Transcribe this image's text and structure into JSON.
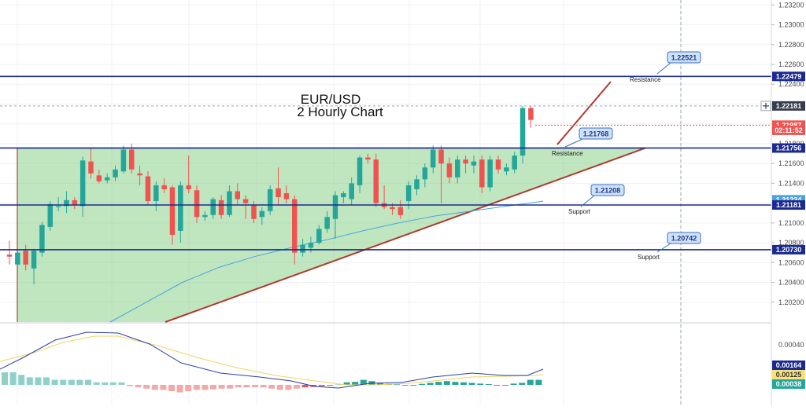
{
  "chart_data": {
    "type": "candlestick",
    "title": "EUR/USD",
    "subtitle": "2 Hourly Chart",
    "ylim": [
      1.2,
      1.2325
    ],
    "price_axis_ticks": [
      "1.23200",
      "1.23000",
      "1.22800",
      "1.22600",
      "1.22400",
      "1.22200",
      "1.22000",
      "1.21800",
      "1.21600",
      "1.21400",
      "1.21200",
      "1.21000",
      "1.20800",
      "1.20600",
      "1.20400",
      "1.20200"
    ],
    "indicator_axis_ticks": [
      "0.00040"
    ],
    "price_badges": [
      {
        "label": "1.22479",
        "value": 1.22479,
        "style": "blue"
      },
      {
        "label": "1.22181",
        "value": 1.22181,
        "style": "dark"
      },
      {
        "label": "1.21987",
        "value": 1.21987,
        "style": "red"
      },
      {
        "label": "02:11:52",
        "value": 1.21935,
        "style": "red"
      },
      {
        "label": "1.21756",
        "value": 1.21756,
        "style": "blue"
      },
      {
        "label": "1.21234",
        "value": 1.21234,
        "style": "lightblue"
      },
      {
        "label": "1.21181",
        "value": 1.21181,
        "style": "blue"
      },
      {
        "label": "1.20730",
        "value": 1.2073,
        "style": "blue"
      }
    ],
    "indicator_badges": [
      {
        "label": "0.00164",
        "style": "blue"
      },
      {
        "label": "0.00125",
        "style": "yellow"
      },
      {
        "label": "0.00038",
        "style": "teal"
      }
    ],
    "horizontal_levels": [
      {
        "value": 1.22479,
        "name": "Resistance"
      },
      {
        "value": 1.21756,
        "name": "Resistance"
      },
      {
        "value": 1.21181,
        "name": "Support"
      },
      {
        "value": 1.2073,
        "name": "Support"
      }
    ],
    "callouts": [
      "1.22521",
      "1.21768",
      "1.21208",
      "1.20742"
    ],
    "level_labels": [
      "Resistance",
      "Resistance",
      "Support",
      "Support"
    ],
    "candles": [
      {
        "o": 1.2068,
        "h": 1.2082,
        "l": 1.2058,
        "c": 1.2066
      },
      {
        "o": 1.2058,
        "h": 1.2072,
        "l": 1.205,
        "c": 1.207
      },
      {
        "o": 1.2072,
        "h": 1.2078,
        "l": 1.2052,
        "c": 1.2058
      },
      {
        "o": 1.2054,
        "h": 1.2074,
        "l": 1.2038,
        "c": 1.2072
      },
      {
        "o": 1.207,
        "h": 1.2101,
        "l": 1.2066,
        "c": 1.2098
      },
      {
        "o": 1.2096,
        "h": 1.2122,
        "l": 1.2092,
        "c": 1.2119
      },
      {
        "o": 1.2116,
        "h": 1.2126,
        "l": 1.2112,
        "c": 1.2117
      },
      {
        "o": 1.2117,
        "h": 1.2132,
        "l": 1.211,
        "c": 1.2123
      },
      {
        "o": 1.2123,
        "h": 1.2126,
        "l": 1.2114,
        "c": 1.2118
      },
      {
        "o": 1.2117,
        "h": 1.2167,
        "l": 1.2106,
        "c": 1.2163
      },
      {
        "o": 1.2162,
        "h": 1.2176,
        "l": 1.2145,
        "c": 1.215
      },
      {
        "o": 1.2148,
        "h": 1.2154,
        "l": 1.214,
        "c": 1.2142
      },
      {
        "o": 1.2143,
        "h": 1.215,
        "l": 1.214,
        "c": 1.2146
      },
      {
        "o": 1.2146,
        "h": 1.2158,
        "l": 1.2142,
        "c": 1.2154
      },
      {
        "o": 1.2152,
        "h": 1.2178,
        "l": 1.215,
        "c": 1.2174
      },
      {
        "o": 1.2174,
        "h": 1.218,
        "l": 1.215,
        "c": 1.2154
      },
      {
        "o": 1.215,
        "h": 1.2158,
        "l": 1.2138,
        "c": 1.2148
      },
      {
        "o": 1.2147,
        "h": 1.2152,
        "l": 1.2118,
        "c": 1.2122
      },
      {
        "o": 1.2122,
        "h": 1.2142,
        "l": 1.2112,
        "c": 1.2138
      },
      {
        "o": 1.2138,
        "h": 1.2145,
        "l": 1.213,
        "c": 1.2134
      },
      {
        "o": 1.2136,
        "h": 1.2138,
        "l": 1.2078,
        "c": 1.2088
      },
      {
        "o": 1.2092,
        "h": 1.2142,
        "l": 1.208,
        "c": 1.2138
      },
      {
        "o": 1.2138,
        "h": 1.2168,
        "l": 1.213,
        "c": 1.2134
      },
      {
        "o": 1.2133,
        "h": 1.2138,
        "l": 1.21,
        "c": 1.2106
      },
      {
        "o": 1.2106,
        "h": 1.2112,
        "l": 1.2102,
        "c": 1.2108
      },
      {
        "o": 1.2108,
        "h": 1.2126,
        "l": 1.2104,
        "c": 1.2124
      },
      {
        "o": 1.2123,
        "h": 1.2128,
        "l": 1.2104,
        "c": 1.2108
      },
      {
        "o": 1.2108,
        "h": 1.2138,
        "l": 1.2106,
        "c": 1.2132
      },
      {
        "o": 1.2132,
        "h": 1.214,
        "l": 1.2118,
        "c": 1.2124
      },
      {
        "o": 1.2124,
        "h": 1.2128,
        "l": 1.2104,
        "c": 1.212
      },
      {
        "o": 1.2118,
        "h": 1.2122,
        "l": 1.21,
        "c": 1.2104
      },
      {
        "o": 1.2106,
        "h": 1.2116,
        "l": 1.2098,
        "c": 1.2112
      },
      {
        "o": 1.2112,
        "h": 1.2138,
        "l": 1.2108,
        "c": 1.2134
      },
      {
        "o": 1.2135,
        "h": 1.2156,
        "l": 1.2118,
        "c": 1.2126
      },
      {
        "o": 1.213,
        "h": 1.2138,
        "l": 1.212,
        "c": 1.2124
      },
      {
        "o": 1.2124,
        "h": 1.2128,
        "l": 1.2058,
        "c": 1.207
      },
      {
        "o": 1.207,
        "h": 1.2084,
        "l": 1.2066,
        "c": 1.2078
      },
      {
        "o": 1.2075,
        "h": 1.2086,
        "l": 1.207,
        "c": 1.208
      },
      {
        "o": 1.208,
        "h": 1.2098,
        "l": 1.2078,
        "c": 1.2094
      },
      {
        "o": 1.2094,
        "h": 1.2112,
        "l": 1.209,
        "c": 1.2106
      },
      {
        "o": 1.2104,
        "h": 1.2132,
        "l": 1.2084,
        "c": 1.2128
      },
      {
        "o": 1.2126,
        "h": 1.2132,
        "l": 1.212,
        "c": 1.213
      },
      {
        "o": 1.2124,
        "h": 1.2146,
        "l": 1.2118,
        "c": 1.214
      },
      {
        "o": 1.2138,
        "h": 1.2168,
        "l": 1.213,
        "c": 1.2166
      },
      {
        "o": 1.2166,
        "h": 1.217,
        "l": 1.216,
        "c": 1.2164
      },
      {
        "o": 1.2164,
        "h": 1.217,
        "l": 1.2116,
        "c": 1.212
      },
      {
        "o": 1.212,
        "h": 1.2138,
        "l": 1.2114,
        "c": 1.2116
      },
      {
        "o": 1.2116,
        "h": 1.212,
        "l": 1.2108,
        "c": 1.2114
      },
      {
        "o": 1.2116,
        "h": 1.2123,
        "l": 1.2104,
        "c": 1.2108
      },
      {
        "o": 1.2122,
        "h": 1.2142,
        "l": 1.2114,
        "c": 1.2138
      },
      {
        "o": 1.2134,
        "h": 1.2148,
        "l": 1.2128,
        "c": 1.2144
      },
      {
        "o": 1.2144,
        "h": 1.216,
        "l": 1.2136,
        "c": 1.2156
      },
      {
        "o": 1.2156,
        "h": 1.2178,
        "l": 1.215,
        "c": 1.2174
      },
      {
        "o": 1.2174,
        "h": 1.2178,
        "l": 1.212,
        "c": 1.216
      },
      {
        "o": 1.216,
        "h": 1.2166,
        "l": 1.214,
        "c": 1.2146
      },
      {
        "o": 1.2146,
        "h": 1.2168,
        "l": 1.214,
        "c": 1.2164
      },
      {
        "o": 1.2164,
        "h": 1.2168,
        "l": 1.215,
        "c": 1.216
      },
      {
        "o": 1.2158,
        "h": 1.2168,
        "l": 1.215,
        "c": 1.2162
      },
      {
        "o": 1.2164,
        "h": 1.2168,
        "l": 1.213,
        "c": 1.2136
      },
      {
        "o": 1.2136,
        "h": 1.2168,
        "l": 1.2132,
        "c": 1.2164
      },
      {
        "o": 1.2164,
        "h": 1.2168,
        "l": 1.215,
        "c": 1.2154
      },
      {
        "o": 1.2152,
        "h": 1.216,
        "l": 1.2148,
        "c": 1.2156
      },
      {
        "o": 1.2154,
        "h": 1.2172,
        "l": 1.215,
        "c": 1.2168
      },
      {
        "o": 1.2168,
        "h": 1.2218,
        "l": 1.216,
        "c": 1.2216
      },
      {
        "o": 1.2216,
        "h": 1.2218,
        "l": 1.2196,
        "c": 1.2204
      }
    ],
    "ma_line": [
      1.2,
      1.202,
      1.204,
      1.2055,
      1.2066,
      1.2075,
      1.2083,
      1.2092,
      1.21,
      1.2107,
      1.2112,
      1.2117,
      1.2122
    ],
    "histogram": [
      0.0005,
      0.0005,
      0.0004,
      0.0003,
      0.0003,
      0.0003,
      0.0002,
      0.0002,
      0.0002,
      0.0002,
      0.0002,
      0.0001,
      0.0001,
      0.0001,
      0.0001,
      -5e-05,
      -0.0001,
      -0.00015,
      -0.0002,
      -0.0002,
      -0.00025,
      -0.0003,
      -0.00025,
      -0.0002,
      -0.0002,
      -0.00018,
      -0.00015,
      -0.00015,
      -0.0001,
      -0.0001,
      -0.0001,
      -0.0001,
      -0.00015,
      -0.0002,
      -0.0002,
      -0.00015,
      -0.0001,
      -8e-05,
      -5e-05,
      -3e-05,
      2e-05,
      0.0001,
      0.00012,
      0.0002,
      0.00015,
      8e-05,
      4e-05,
      2e-05,
      -3e-05,
      -3e-05,
      4e-05,
      8e-05,
      0.00012,
      0.00015,
      0.00012,
      0.0001,
      8e-05,
      5e-05,
      3e-05,
      -3e-05,
      -3e-05,
      5e-05,
      8e-05,
      0.0002,
      0.0002
    ]
  }
}
